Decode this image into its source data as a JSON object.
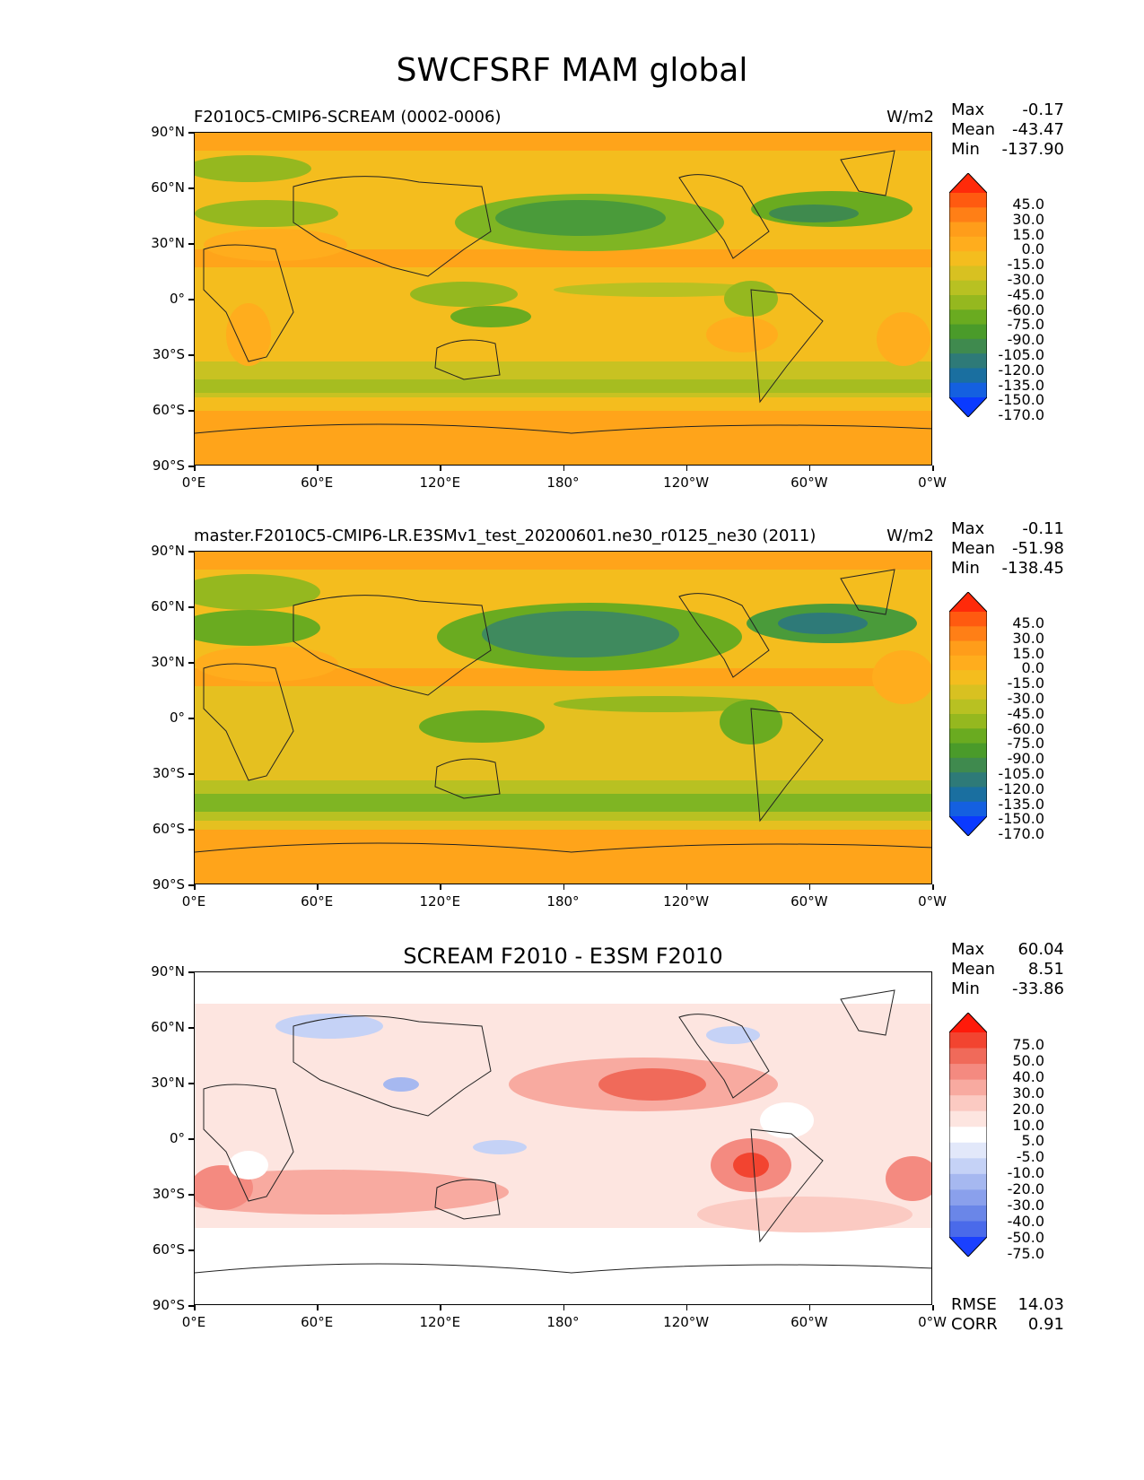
{
  "title": "SWCFSRF MAM global",
  "lat_ticks": [
    "90°N",
    "60°N",
    "30°N",
    "0°",
    "30°S",
    "60°S",
    "90°S"
  ],
  "lon_ticks": [
    "0°E",
    "60°E",
    "120°E",
    "180°",
    "120°W",
    "60°W",
    "0°W"
  ],
  "panels": [
    {
      "title_left": "F2010C5-CMIP6-SCREAM (0002-0006)",
      "title_right": "W/m2",
      "title_center": "",
      "stats": {
        "max_label": "Max",
        "max": "-0.17",
        "mean_label": "Mean",
        "mean": "-43.47",
        "min_label": "Min",
        "min": "-137.90"
      },
      "colorbar_labels": [
        "45.0",
        "30.0",
        "15.0",
        "0.0",
        "-15.0",
        "-30.0",
        "-45.0",
        "-60.0",
        "-75.0",
        "-90.0",
        "-105.0",
        "-120.0",
        "-135.0",
        "-150.0",
        "-170.0"
      ]
    },
    {
      "title_left": "master.F2010C5-CMIP6-LR.E3SMv1_test_20200601.ne30_r0125_ne30 (2011)",
      "title_right": "W/m2",
      "title_center": "",
      "stats": {
        "max_label": "Max",
        "max": "-0.11",
        "mean_label": "Mean",
        "mean": "-51.98",
        "min_label": "Min",
        "min": "-138.45"
      },
      "colorbar_labels": [
        "45.0",
        "30.0",
        "15.0",
        "0.0",
        "-15.0",
        "-30.0",
        "-45.0",
        "-60.0",
        "-75.0",
        "-90.0",
        "-105.0",
        "-120.0",
        "-135.0",
        "-150.0",
        "-170.0"
      ]
    },
    {
      "title_left": "",
      "title_right": "",
      "title_center": "SCREAM F2010 - E3SM F2010",
      "stats": {
        "max_label": "Max",
        "max": "60.04",
        "mean_label": "Mean",
        "mean": "8.51",
        "min_label": "Min",
        "min": "-33.86"
      },
      "colorbar_labels": [
        "75.0",
        "50.0",
        "40.0",
        "30.0",
        "20.0",
        "10.0",
        "5.0",
        "-5.0",
        "-10.0",
        "-20.0",
        "-30.0",
        "-40.0",
        "-50.0",
        "-75.0"
      ],
      "footer": {
        "rmse_label": "RMSE",
        "rmse": "14.03",
        "corr_label": "CORR",
        "corr": "0.91"
      }
    }
  ],
  "colors": {
    "abs_scale": [
      "#ff2a0a",
      "#ff5a10",
      "#ff7f16",
      "#ff9d1a",
      "#ffad1d",
      "#f4bd1e",
      "#d8c121",
      "#b8c122",
      "#95b81f",
      "#6aab20",
      "#4a9b2a",
      "#3f8a4e",
      "#2e7a78",
      "#1a6fa0",
      "#1460e0",
      "#0a3aff"
    ],
    "diff_scale": [
      "#ff1a0a",
      "#f24430",
      "#f06a5a",
      "#f48a80",
      "#f8aaa0",
      "#fbcac2",
      "#fde5e0",
      "#ffffff",
      "#e2e8fa",
      "#c5d2f6",
      "#a6b8f0",
      "#8aa0ec",
      "#6a86e8",
      "#4a6aea",
      "#1a40ff"
    ]
  }
}
